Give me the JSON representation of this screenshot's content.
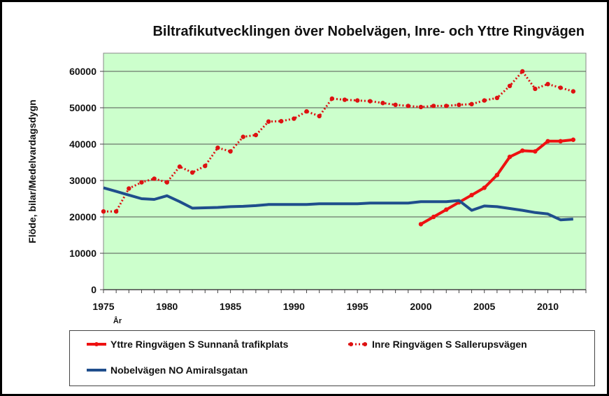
{
  "title": "Biltrafikutvecklingen över Nobelvägen, Inre- och Yttre Ringvägen",
  "chart_data": {
    "type": "line",
    "title": "Biltrafikutvecklingen över Nobelvägen, Inre- och Yttre Ringvägen",
    "xlabel": "År",
    "ylabel": "Flöde, bilar/Medelvardagsdygn",
    "xlim": [
      1975,
      2013
    ],
    "ylim": [
      0,
      65000
    ],
    "xticks": [
      1975,
      1980,
      1985,
      1990,
      1995,
      2000,
      2005,
      2010
    ],
    "yticks": [
      0,
      10000,
      20000,
      30000,
      40000,
      50000,
      60000
    ],
    "grid": "horizontal",
    "legend_position": "bottom",
    "series": [
      {
        "name": "Yttre Ringvägen S Sunnanå trafikplats",
        "color": "#ee1111",
        "style": "solid-markers",
        "x": [
          2000,
          2001,
          2002,
          2003,
          2004,
          2005,
          2006,
          2007,
          2008,
          2009,
          2010,
          2011,
          2012
        ],
        "y": [
          18000,
          20000,
          22000,
          24000,
          26000,
          28000,
          31500,
          36500,
          38200,
          38000,
          40800,
          40800,
          41200
        ]
      },
      {
        "name": "Inre Ringvägen S Sallerupsvägen",
        "color": "#dd1111",
        "style": "dotted-markers",
        "x": [
          1975,
          1976,
          1977,
          1978,
          1979,
          1980,
          1981,
          1982,
          1983,
          1984,
          1985,
          1986,
          1987,
          1988,
          1989,
          1990,
          1991,
          1992,
          1993,
          1994,
          1995,
          1996,
          1997,
          1998,
          1999,
          2000,
          2001,
          2002,
          2003,
          2004,
          2005,
          2006,
          2007,
          2008,
          2009,
          2010,
          2011,
          2012
        ],
        "y": [
          21500,
          21500,
          27800,
          29500,
          30500,
          29500,
          33800,
          32200,
          34000,
          39000,
          38000,
          42000,
          42500,
          46200,
          46300,
          47000,
          49000,
          47700,
          52500,
          52200,
          52000,
          51800,
          51300,
          50800,
          50500,
          50200,
          50500,
          50500,
          50800,
          51000,
          52000,
          52700,
          56000,
          60000,
          55200,
          56500,
          55500,
          54500
        ]
      },
      {
        "name": "Nobelvägen NO Amiralsgatan",
        "color": "#1f4e8c",
        "style": "solid",
        "x": [
          1975,
          1976,
          1977,
          1978,
          1979,
          1980,
          1981,
          1982,
          1983,
          1984,
          1985,
          1986,
          1987,
          1988,
          1989,
          1990,
          1991,
          1992,
          1993,
          1994,
          1995,
          1996,
          1997,
          1998,
          1999,
          2000,
          2001,
          2002,
          2003,
          2004,
          2005,
          2006,
          2007,
          2008,
          2009,
          2010,
          2011,
          2012
        ],
        "y": [
          28000,
          27000,
          26000,
          25000,
          24800,
          25800,
          24200,
          22400,
          22500,
          22600,
          22800,
          22900,
          23100,
          23400,
          23400,
          23400,
          23400,
          23600,
          23600,
          23600,
          23600,
          23800,
          23800,
          23800,
          23800,
          24200,
          24200,
          24200,
          24500,
          21800,
          23000,
          22800,
          22300,
          21800,
          21200,
          20800,
          19200,
          19400
        ]
      }
    ]
  }
}
